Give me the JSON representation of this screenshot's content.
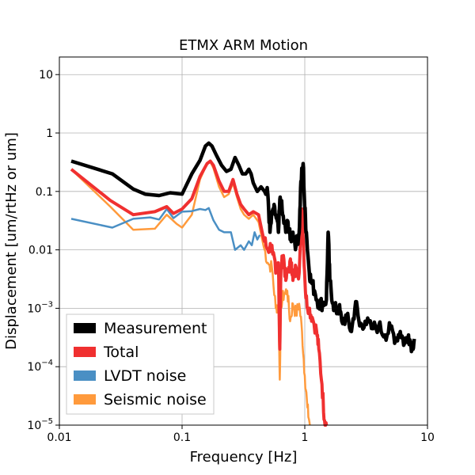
{
  "chart_data": {
    "type": "line",
    "title": "ETMX ARM Motion",
    "xlabel": "Frequency [Hz]",
    "ylabel": "Displacement [um/rtHz or um]",
    "xscale": "log",
    "yscale": "log",
    "xlim": [
      0.01,
      10
    ],
    "ylim": [
      1e-05,
      20
    ],
    "grid": true,
    "legend_position": "bottom-left",
    "x_ticks": [
      {
        "value": 0.01,
        "label": "0.01"
      },
      {
        "value": 0.1,
        "label": "0.1"
      },
      {
        "value": 1,
        "label": "1"
      },
      {
        "value": 10,
        "label": "10"
      }
    ],
    "y_ticks": [
      {
        "value": 1e-05,
        "base": "10",
        "exp": "−5"
      },
      {
        "value": 0.0001,
        "base": "10",
        "exp": "−4"
      },
      {
        "value": 0.001,
        "base": "10",
        "exp": "−3"
      },
      {
        "value": 0.01,
        "label": "0.01"
      },
      {
        "value": 0.1,
        "label": "0.1"
      },
      {
        "value": 1,
        "label": "1"
      },
      {
        "value": 10,
        "label": "10"
      }
    ],
    "series": [
      {
        "name": "Measurement",
        "color": "#000000",
        "width": 4.5,
        "points": [
          [
            0.0125,
            0.33
          ],
          [
            0.027,
            0.2
          ],
          [
            0.04,
            0.11
          ],
          [
            0.05,
            0.09
          ],
          [
            0.065,
            0.085
          ],
          [
            0.08,
            0.095
          ],
          [
            0.1,
            0.09
          ],
          [
            0.12,
            0.2
          ],
          [
            0.14,
            0.34
          ],
          [
            0.155,
            0.6
          ],
          [
            0.165,
            0.67
          ],
          [
            0.175,
            0.6
          ],
          [
            0.19,
            0.42
          ],
          [
            0.21,
            0.28
          ],
          [
            0.23,
            0.22
          ],
          [
            0.25,
            0.24
          ],
          [
            0.27,
            0.38
          ],
          [
            0.29,
            0.28
          ],
          [
            0.31,
            0.2
          ],
          [
            0.33,
            0.2
          ],
          [
            0.35,
            0.24
          ],
          [
            0.365,
            0.2
          ],
          [
            0.38,
            0.14
          ],
          [
            0.41,
            0.1
          ],
          [
            0.44,
            0.12
          ],
          [
            0.47,
            0.1
          ],
          [
            0.5,
            0.09
          ],
          [
            0.52,
            0.02
          ],
          [
            0.55,
            0.05
          ],
          [
            0.58,
            0.04
          ],
          [
            0.61,
            0.02
          ],
          [
            0.63,
            0.08
          ],
          [
            0.66,
            0.04
          ],
          [
            0.7,
            0.02
          ],
          [
            0.73,
            0.03
          ],
          [
            0.76,
            0.015
          ],
          [
            0.8,
            0.02
          ],
          [
            0.85,
            0.012
          ],
          [
            0.9,
            0.02
          ],
          [
            0.93,
            0.15
          ],
          [
            0.97,
            0.3
          ],
          [
            1.0,
            0.05
          ],
          [
            1.03,
            0.02
          ],
          [
            1.08,
            0.005
          ],
          [
            1.12,
            0.003
          ],
          [
            1.2,
            0.002
          ],
          [
            1.3,
            0.0012
          ],
          [
            1.4,
            0.0012
          ],
          [
            1.5,
            0.0014
          ],
          [
            1.55,
            0.02
          ],
          [
            1.6,
            0.003
          ],
          [
            1.7,
            0.0012
          ],
          [
            1.8,
            0.0009
          ],
          [
            1.9,
            0.001
          ],
          [
            2.0,
            0.0006
          ],
          [
            2.2,
            0.0007
          ],
          [
            2.4,
            0.0004
          ],
          [
            2.6,
            0.0013
          ],
          [
            2.8,
            0.0005
          ],
          [
            3.1,
            0.0006
          ],
          [
            3.5,
            0.00045
          ],
          [
            4.0,
            0.0005
          ],
          [
            4.5,
            0.00035
          ],
          [
            5.0,
            0.00045
          ],
          [
            5.5,
            0.0003
          ],
          [
            6.0,
            0.0004
          ],
          [
            6.5,
            0.00025
          ],
          [
            7.0,
            0.00035
          ],
          [
            7.5,
            0.00022
          ],
          [
            7.8,
            0.0003
          ]
        ],
        "wiggle": true
      },
      {
        "name": "Total",
        "color": "#f03030",
        "width": 4,
        "points": [
          [
            0.0125,
            0.24
          ],
          [
            0.026,
            0.07
          ],
          [
            0.04,
            0.04
          ],
          [
            0.06,
            0.045
          ],
          [
            0.075,
            0.055
          ],
          [
            0.085,
            0.042
          ],
          [
            0.1,
            0.05
          ],
          [
            0.12,
            0.075
          ],
          [
            0.14,
            0.18
          ],
          [
            0.16,
            0.3
          ],
          [
            0.17,
            0.33
          ],
          [
            0.18,
            0.28
          ],
          [
            0.2,
            0.15
          ],
          [
            0.22,
            0.1
          ],
          [
            0.24,
            0.1
          ],
          [
            0.26,
            0.16
          ],
          [
            0.28,
            0.09
          ],
          [
            0.3,
            0.06
          ],
          [
            0.32,
            0.05
          ],
          [
            0.35,
            0.04
          ],
          [
            0.38,
            0.045
          ],
          [
            0.42,
            0.04
          ],
          [
            0.46,
            0.016
          ],
          [
            0.5,
            0.01
          ],
          [
            0.54,
            0.012
          ],
          [
            0.58,
            0.004
          ],
          [
            0.61,
            0.006
          ],
          [
            0.625,
            0.0002
          ],
          [
            0.64,
            0.005
          ],
          [
            0.67,
            0.008
          ],
          [
            0.7,
            0.003
          ],
          [
            0.74,
            0.005
          ],
          [
            0.78,
            0.006
          ],
          [
            0.8,
            0.003
          ],
          [
            0.85,
            0.005
          ],
          [
            0.9,
            0.004
          ],
          [
            0.95,
            0.05
          ],
          [
            0.98,
            0.01
          ],
          [
            1.02,
            0.0015
          ],
          [
            1.08,
            0.001
          ],
          [
            1.15,
            0.0007
          ],
          [
            1.25,
            0.0004
          ],
          [
            1.3,
            0.0002
          ],
          [
            1.38,
            5e-05
          ],
          [
            1.45,
            1.2e-05
          ],
          [
            1.5,
            1e-05
          ]
        ],
        "wiggle": true
      },
      {
        "name": "LVDT noise",
        "color": "#4a8fc4",
        "width": 2.5,
        "points": [
          [
            0.0125,
            0.034
          ],
          [
            0.027,
            0.024
          ],
          [
            0.04,
            0.034
          ],
          [
            0.055,
            0.036
          ],
          [
            0.065,
            0.033
          ],
          [
            0.075,
            0.05
          ],
          [
            0.085,
            0.035
          ],
          [
            0.1,
            0.045
          ],
          [
            0.12,
            0.046
          ],
          [
            0.14,
            0.05
          ],
          [
            0.155,
            0.048
          ],
          [
            0.165,
            0.052
          ],
          [
            0.18,
            0.032
          ],
          [
            0.2,
            0.022
          ],
          [
            0.22,
            0.02
          ],
          [
            0.25,
            0.02
          ],
          [
            0.27,
            0.01
          ],
          [
            0.3,
            0.012
          ],
          [
            0.32,
            0.01
          ],
          [
            0.35,
            0.014
          ],
          [
            0.37,
            0.012
          ],
          [
            0.39,
            0.02
          ],
          [
            0.41,
            0.015
          ],
          [
            0.43,
            0.018
          ]
        ],
        "wiggle": false
      },
      {
        "name": "Seismic noise",
        "color": "#ff9a3c",
        "width": 2.5,
        "points": [
          [
            0.0125,
            0.24
          ],
          [
            0.026,
            0.055
          ],
          [
            0.04,
            0.022
          ],
          [
            0.06,
            0.023
          ],
          [
            0.075,
            0.04
          ],
          [
            0.09,
            0.028
          ],
          [
            0.1,
            0.024
          ],
          [
            0.12,
            0.04
          ],
          [
            0.14,
            0.16
          ],
          [
            0.16,
            0.3
          ],
          [
            0.17,
            0.32
          ],
          [
            0.18,
            0.25
          ],
          [
            0.2,
            0.12
          ],
          [
            0.22,
            0.08
          ],
          [
            0.24,
            0.09
          ],
          [
            0.26,
            0.14
          ],
          [
            0.28,
            0.08
          ],
          [
            0.3,
            0.05
          ],
          [
            0.32,
            0.04
          ],
          [
            0.35,
            0.034
          ],
          [
            0.38,
            0.04
          ],
          [
            0.42,
            0.03
          ],
          [
            0.46,
            0.012
          ],
          [
            0.5,
            0.006
          ],
          [
            0.54,
            0.005
          ],
          [
            0.58,
            0.001
          ],
          [
            0.61,
            0.0012
          ],
          [
            0.625,
            6e-05
          ],
          [
            0.64,
            0.0012
          ],
          [
            0.68,
            0.0018
          ],
          [
            0.72,
            0.002
          ],
          [
            0.76,
            0.0006
          ],
          [
            0.8,
            0.0012
          ],
          [
            0.85,
            0.0008
          ],
          [
            0.9,
            0.0012
          ],
          [
            0.95,
            0.0004
          ],
          [
            1.0,
            7e-05
          ],
          [
            1.05,
            2e-05
          ],
          [
            1.1,
            1e-05
          ]
        ],
        "wiggle": true
      }
    ]
  }
}
